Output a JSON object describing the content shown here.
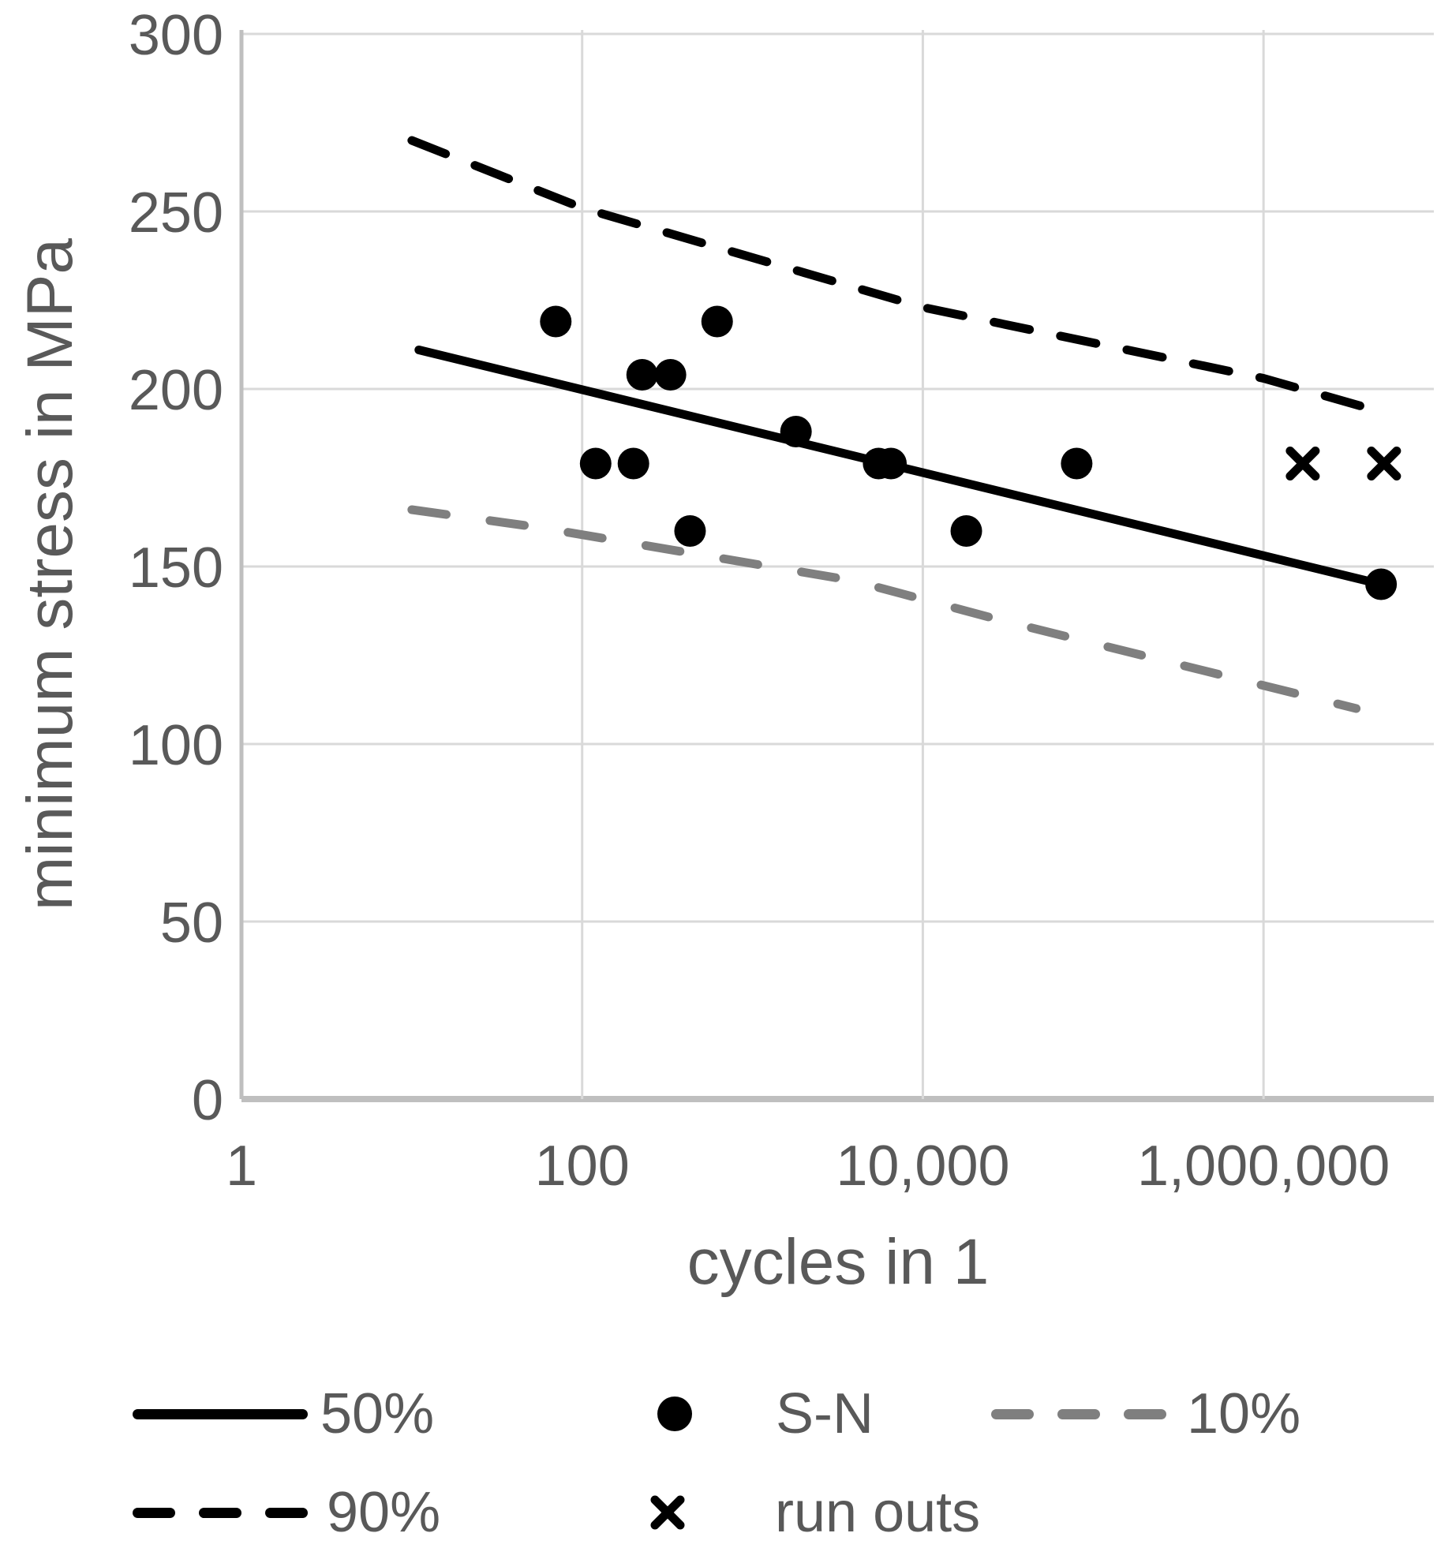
{
  "figure": {
    "background": "#ffffff",
    "text_color": "#595959",
    "grid_color": "#d9d9d9",
    "axis_line_color": "#bfbfbf",
    "series_black": "#000000",
    "series_gray": "#7f7f7f"
  },
  "chart_data": {
    "type": "scatter",
    "title": "",
    "xlabel": "cycles in 1",
    "ylabel": "minimum stress in MPa",
    "x_scale": "log",
    "xlim": [
      1,
      10000000
    ],
    "ylim": [
      0,
      300
    ],
    "grid": true,
    "legend_position": "bottom",
    "x_ticks": [
      {
        "value": 1,
        "label": "1"
      },
      {
        "value": 100,
        "label": "100"
      },
      {
        "value": 10000,
        "label": "10,000"
      },
      {
        "value": 1000000,
        "label": "1,000,000"
      }
    ],
    "y_ticks": [
      {
        "value": 0,
        "label": "0"
      },
      {
        "value": 50,
        "label": "50"
      },
      {
        "value": 100,
        "label": "100"
      },
      {
        "value": 150,
        "label": "150"
      },
      {
        "value": 200,
        "label": "200"
      },
      {
        "value": 250,
        "label": "250"
      },
      {
        "value": 300,
        "label": "300"
      }
    ],
    "series": [
      {
        "name": "90%",
        "type": "line",
        "style": "dashed",
        "color": "#000000",
        "points": [
          [
            10,
            270
          ],
          [
            100,
            251
          ],
          [
            10000,
            223
          ],
          [
            1000000,
            203
          ],
          [
            5400000,
            193
          ]
        ]
      },
      {
        "name": "10%",
        "type": "line",
        "style": "dashed",
        "color": "#7f7f7f",
        "points": [
          [
            10,
            166
          ],
          [
            56,
            161
          ],
          [
            3900,
            146
          ],
          [
            28000,
            135
          ],
          [
            3500000,
            110
          ]
        ]
      },
      {
        "name": "50%",
        "type": "line",
        "style": "solid",
        "color": "#000000",
        "points": [
          [
            11,
            211
          ],
          [
            4900000,
            145
          ]
        ]
      },
      {
        "name": "S-N",
        "type": "scatter",
        "marker": "circle",
        "color": "#000000",
        "points": [
          [
            70,
            219
          ],
          [
            120,
            179
          ],
          [
            200,
            179
          ],
          [
            225,
            204
          ],
          [
            330,
            204
          ],
          [
            430,
            160
          ],
          [
            620,
            219
          ],
          [
            1800,
            188
          ],
          [
            5500,
            179
          ],
          [
            6500,
            179
          ],
          [
            18000,
            160
          ],
          [
            80000,
            179
          ],
          [
            4900000,
            145
          ]
        ]
      },
      {
        "name": "run outs",
        "type": "scatter",
        "marker": "x",
        "color": "#000000",
        "points": [
          [
            1700000,
            179
          ],
          [
            5100000,
            179
          ]
        ]
      }
    ]
  },
  "legend": {
    "row1": [
      {
        "label": "50%",
        "swatch": "solid-line",
        "color": "#000000"
      },
      {
        "label": "S-N",
        "swatch": "dot",
        "color": "#000000"
      },
      {
        "label": "10%",
        "swatch": "dashed-line",
        "color": "#7f7f7f"
      }
    ],
    "row2": [
      {
        "label": "90%",
        "swatch": "dashed-line",
        "color": "#000000"
      },
      {
        "label": "run outs",
        "swatch": "x",
        "color": "#000000"
      }
    ]
  }
}
